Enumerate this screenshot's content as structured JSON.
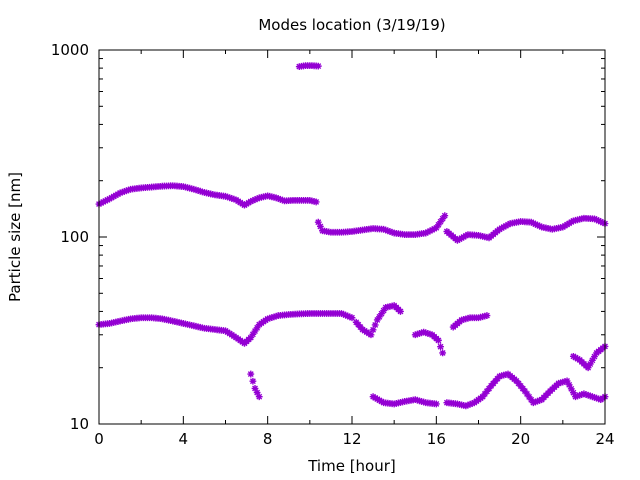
{
  "colors": {
    "series": "#9400d3",
    "frame": "#000000",
    "background": "#ffffff"
  },
  "chart_data": {
    "type": "scatter",
    "title": "Modes location (3/19/19)",
    "xlabel": "Time [hour]",
    "ylabel": "Particle size [nm]",
    "xlim": [
      0,
      24
    ],
    "ylim": [
      10,
      1000
    ],
    "yscale": "log",
    "grid": false,
    "legend": "none",
    "marker": "star",
    "xticks": [
      0,
      4,
      8,
      12,
      16,
      20,
      24
    ],
    "xtick_labels": [
      "0",
      "4",
      "8",
      "12",
      "16",
      "20",
      "24"
    ],
    "yticks": [
      10,
      100,
      1000
    ],
    "ytick_labels": [
      "10",
      "100",
      "1000"
    ],
    "series": [
      {
        "segments": [
          {
            "x": [
              0,
              0.5,
              1,
              1.5,
              2,
              2.5,
              3,
              3.5,
              4,
              4.5,
              5,
              5.5,
              6,
              6.5,
              6.9,
              7.2,
              7.6,
              8,
              8.4,
              8.8,
              9.2,
              9.6,
              10,
              10.3
            ],
            "y": [
              150,
              160,
              172,
              180,
              183,
              185,
              187,
              188,
              186,
              180,
              173,
              168,
              165,
              158,
              148,
              155,
              162,
              166,
              162,
              156,
              157,
              157,
              157,
              154
            ]
          },
          {
            "x": [
              9.5,
              9.8,
              10.1,
              10.4
            ],
            "y": [
              815,
              825,
              825,
              820
            ]
          },
          {
            "x": [
              10.4,
              10.6,
              11,
              11.5,
              12,
              12.5,
              13,
              13.5,
              14,
              14.5,
              15,
              15.5,
              16,
              16.4
            ],
            "y": [
              120,
              108,
              106,
              106,
              107,
              109,
              111,
              110,
              105,
              103,
              103,
              105,
              112,
              130
            ]
          },
          {
            "x": [
              16.5,
              17,
              17.5,
              18,
              18.5,
              19,
              19.5,
              20,
              20.5,
              21,
              21.5,
              22,
              22.5,
              23,
              23.5,
              24
            ],
            "y": [
              107,
              96,
              103,
              102,
              99,
              110,
              118,
              121,
              120,
              113,
              110,
              113,
              122,
              126,
              125,
              118
            ]
          },
          {
            "x": [
              0,
              0.5,
              1,
              1.5,
              2,
              2.5,
              3,
              3.5,
              4,
              4.5,
              5,
              5.5,
              6,
              6.5,
              6.9,
              7.2,
              7.6,
              8,
              8.5,
              9,
              9.5,
              10,
              10.5,
              11,
              11.5,
              12
            ],
            "y": [
              34,
              34.5,
              35.5,
              36.5,
              37,
              37,
              36.5,
              35.5,
              34.5,
              33.5,
              32.5,
              32,
              31.5,
              29,
              27,
              29,
              34,
              36.5,
              38,
              38.5,
              38.8,
              39,
              39,
              39,
              39,
              37
            ]
          },
          {
            "x": [
              12.2,
              12.5,
              12.9,
              13.2,
              13.6,
              14,
              14.3
            ],
            "y": [
              35,
              32,
              30,
              36,
              42,
              43,
              40
            ]
          },
          {
            "x": [
              15,
              15.4,
              15.8,
              16.1,
              16.3
            ],
            "y": [
              30,
              31,
              30,
              28,
              24
            ]
          },
          {
            "x": [
              16.8,
              17.2,
              17.6,
              18,
              18.4
            ],
            "y": [
              33,
              36,
              37,
              37,
              38
            ]
          },
          {
            "x": [
              7.2,
              7.4,
              7.6
            ],
            "y": [
              18.5,
              15.5,
              14
            ]
          },
          {
            "x": [
              13,
              13.5,
              14,
              14.5,
              15,
              15.5,
              16
            ],
            "y": [
              14,
              13,
              12.8,
              13.2,
              13.5,
              13,
              12.8
            ]
          },
          {
            "x": [
              16.5,
              17,
              17.4,
              17.8,
              18.2,
              18.6,
              19,
              19.4,
              19.8,
              20.2,
              20.6,
              21,
              21.4,
              21.8,
              22.2,
              22.6,
              23,
              23.4,
              23.8,
              24
            ],
            "y": [
              13,
              12.8,
              12.5,
              13,
              14,
              16,
              18,
              18.5,
              17,
              15,
              13,
              13.5,
              15,
              16.5,
              17,
              14,
              14.5,
              14,
              13.5,
              14
            ]
          },
          {
            "x": [
              22.5,
              22.8,
              23.2,
              23.6,
              24
            ],
            "y": [
              23,
              22,
              20,
              24,
              26
            ]
          }
        ]
      }
    ]
  }
}
